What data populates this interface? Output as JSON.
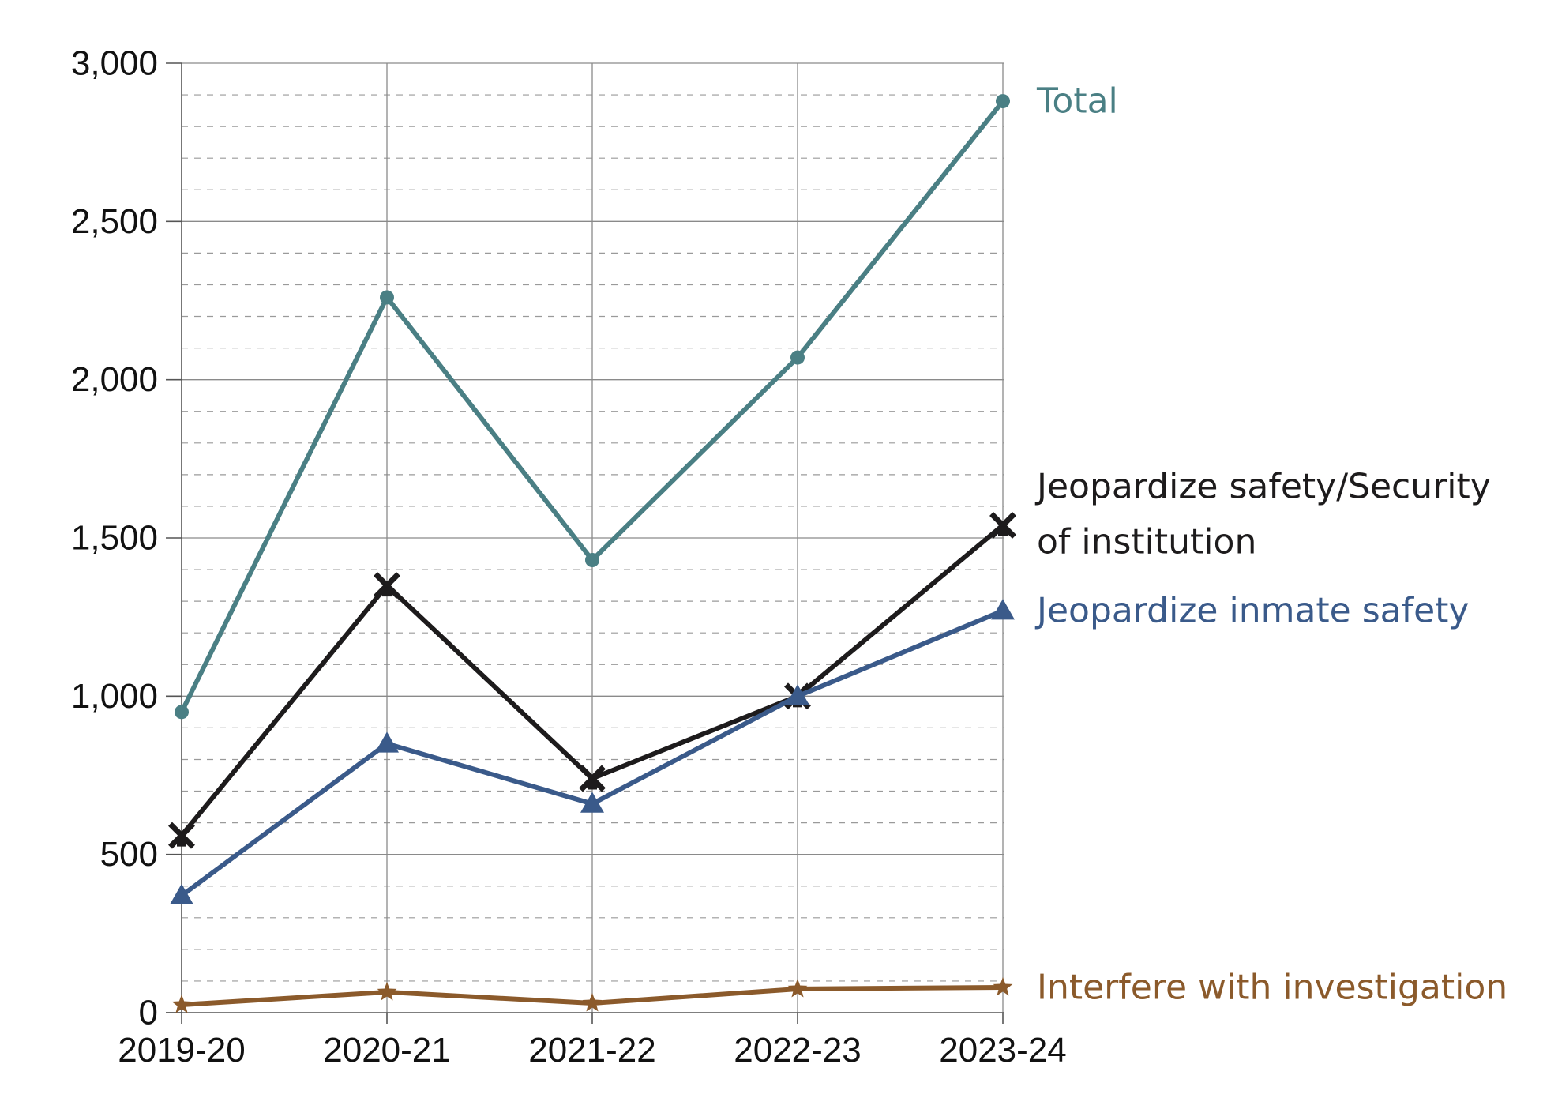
{
  "chart_data": {
    "type": "line",
    "title": "",
    "xlabel": "",
    "ylabel": "",
    "categories": [
      "2019-20",
      "2020-21",
      "2021-22",
      "2022-23",
      "2023-24"
    ],
    "ylim": [
      0,
      3000
    ],
    "y_ticks": [
      0,
      500,
      1000,
      1500,
      2000,
      2500,
      3000
    ],
    "y_tick_labels": [
      "0",
      "500",
      "1,000",
      "1,500",
      "2,000",
      "2,500",
      "3,000"
    ],
    "grid": true,
    "legend": "direct labels at right end of each series",
    "series": [
      {
        "id": "total",
        "name": "Total",
        "label_lines": [
          "Total"
        ],
        "values": [
          950,
          2260,
          1430,
          2070,
          2880
        ],
        "color": "#4a7f84",
        "marker": "circle"
      },
      {
        "id": "security",
        "name": "Jeopardize safety/Security of institution",
        "label_lines": [
          "Jeopardize safety/Security",
          "of institution"
        ],
        "values": [
          560,
          1350,
          740,
          1000,
          1540
        ],
        "color": "#1d1b1c",
        "marker": "cross"
      },
      {
        "id": "inmate",
        "name": "Jeopardize inmate safety",
        "label_lines": [
          "Jeopardize inmate safety"
        ],
        "values": [
          370,
          850,
          660,
          1000,
          1270
        ],
        "color": "#3a5a8a",
        "marker": "triangle"
      },
      {
        "id": "investigation",
        "name": "Interfere with investigation",
        "label_lines": [
          "Interfere with investigation"
        ],
        "values": [
          25,
          65,
          30,
          75,
          80
        ],
        "color": "#8b5a2b",
        "marker": "star"
      }
    ]
  }
}
